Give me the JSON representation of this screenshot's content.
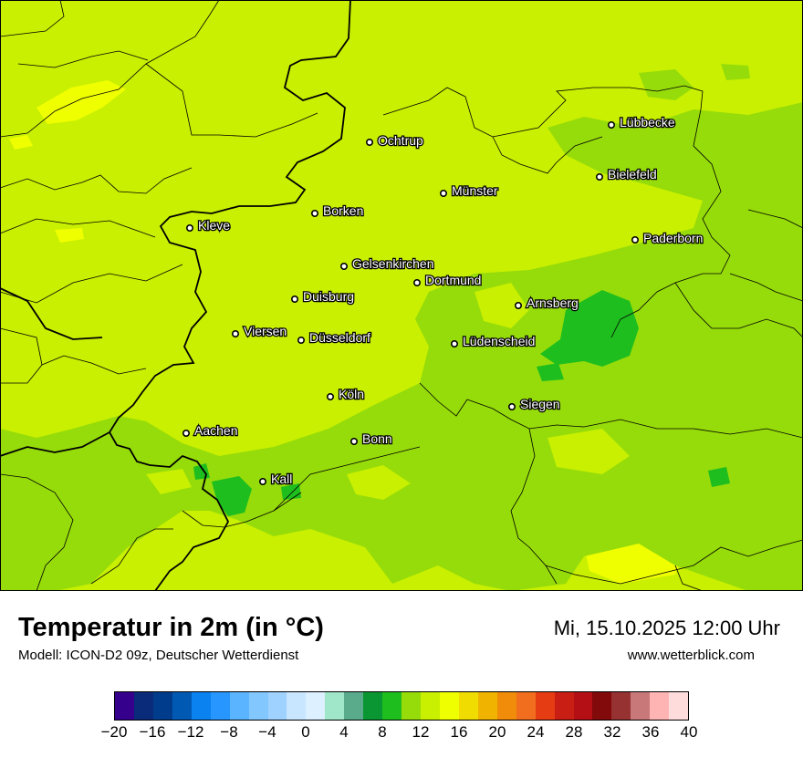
{
  "title": "Temperatur in 2m (in °C)",
  "subtitle": "Modell: ICON-D2 09z, Deutscher Wetterdienst",
  "datetime": "Mi, 15.10.2025 12:00 Uhr",
  "website": "www.wetterblick.com",
  "cities": [
    {
      "name": "Lübbecke"
    },
    {
      "name": "Ochtrup"
    },
    {
      "name": "Bielefeld"
    },
    {
      "name": "Münster"
    },
    {
      "name": "Borken"
    },
    {
      "name": "Kleve"
    },
    {
      "name": "Paderborn"
    },
    {
      "name": "Gelsenkirchen"
    },
    {
      "name": "Dortmund"
    },
    {
      "name": "Duisburg"
    },
    {
      "name": "Arnsberg"
    },
    {
      "name": "Viersen"
    },
    {
      "name": "Düsseldorf"
    },
    {
      "name": "Lüdenscheid"
    },
    {
      "name": "Köln"
    },
    {
      "name": "Siegen"
    },
    {
      "name": "Aachen"
    },
    {
      "name": "Bonn"
    },
    {
      "name": "Kall"
    }
  ],
  "legend": {
    "tick_labels": [
      "−20",
      "−16",
      "−12",
      "−8",
      "−4",
      "0",
      "4",
      "8",
      "12",
      "16",
      "20",
      "24",
      "28",
      "32",
      "36",
      "40"
    ],
    "colors": [
      "#34008c",
      "#0a2a7a",
      "#003c8c",
      "#005ab4",
      "#0a82f0",
      "#2896ff",
      "#5ab4ff",
      "#82c8ff",
      "#a0d2ff",
      "#c8e6ff",
      "#dcf0ff",
      "#a0e6c8",
      "#5aaa8c",
      "#0a9632",
      "#1ebe1e",
      "#96dc0a",
      "#c8f000",
      "#f0ff00",
      "#f0dc00",
      "#f0b400",
      "#f08c0a",
      "#f06e1e",
      "#e63c14",
      "#c81e14",
      "#b40f14",
      "#820a0a",
      "#963232",
      "#c87878",
      "#ffb4b4",
      "#ffdcdc"
    ]
  }
}
